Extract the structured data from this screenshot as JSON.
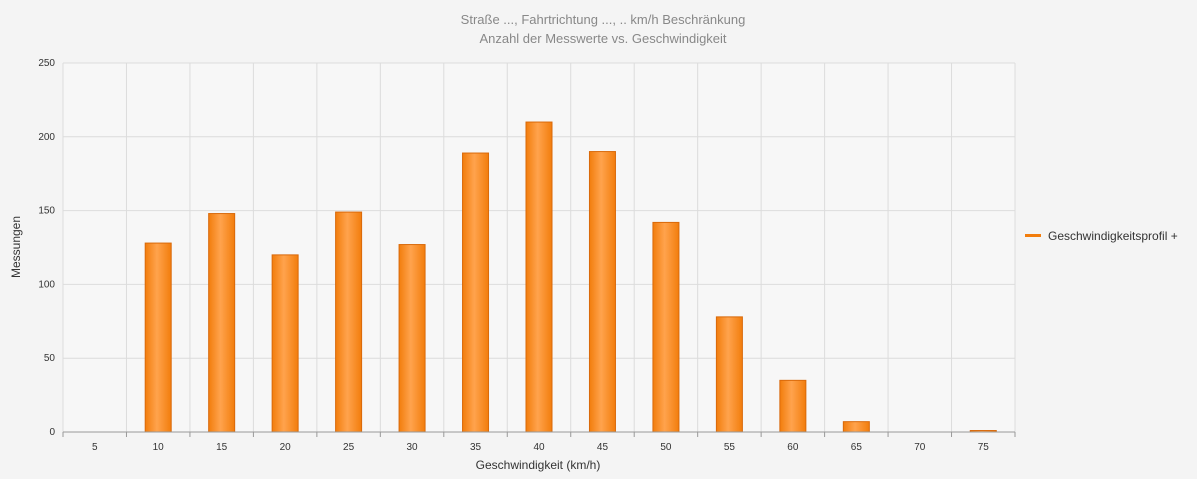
{
  "chart_data": {
    "type": "bar",
    "title": "Straße ..., Fahrtrichtung ..., .. km/h Beschränkung",
    "subtitle": "Anzahl der Messwerte vs. Geschwindigkeit",
    "xlabel": "Geschwindigkeit (km/h)",
    "ylabel": "Messungen",
    "ylim": [
      0,
      250
    ],
    "yticks": [
      "0",
      "50",
      "100",
      "150",
      "200",
      "250"
    ],
    "categories": [
      "5",
      "10",
      "15",
      "20",
      "25",
      "30",
      "35",
      "40",
      "45",
      "50",
      "55",
      "60",
      "65",
      "70",
      "75"
    ],
    "series": [
      {
        "name": "Geschwindigkeitsprofil +",
        "values": [
          0,
          128,
          148,
          120,
          149,
          127,
          189,
          210,
          190,
          142,
          78,
          35,
          7,
          0,
          1
        ]
      }
    ],
    "grid": true,
    "legend_position": "right",
    "colors": {
      "bar_light": "#ffa34d",
      "bar_dark": "#f27d0c",
      "bar_stroke": "#d9690a",
      "grid": "#dcdcdc",
      "text": "#888888",
      "axis_text": "#333333"
    }
  }
}
